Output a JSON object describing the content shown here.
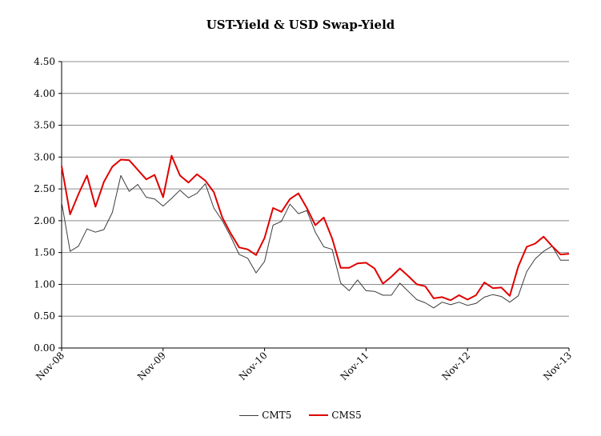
{
  "chart_data": {
    "type": "line",
    "title": "UST-Yield & USD Swap-Yield",
    "xlabel": "",
    "ylabel": "",
    "ylim": [
      0,
      4.5
    ],
    "y_ticks": [
      "0.00",
      "0.50",
      "1.00",
      "1.50",
      "2.00",
      "2.50",
      "3.00",
      "3.50",
      "4.00",
      "4.50"
    ],
    "x_ticks": [
      "Nov-08",
      "Nov-09",
      "Nov-10",
      "Nov-11",
      "Nov-12",
      "Nov-13"
    ],
    "grid": true,
    "legend": "bottom",
    "months_axis": {
      "start": "Nov-08",
      "end": "Nov-13"
    },
    "series": [
      {
        "name": "CMT5",
        "color": "#3c3c3c",
        "values": [
          2.29,
          1.52,
          1.6,
          1.87,
          1.82,
          1.86,
          2.13,
          2.71,
          2.46,
          2.57,
          2.37,
          2.34,
          2.23,
          2.35,
          2.48,
          2.36,
          2.43,
          2.58,
          2.2,
          2.0,
          1.75,
          1.47,
          1.41,
          1.18,
          1.36,
          1.93,
          1.99,
          2.26,
          2.11,
          2.16,
          1.82,
          1.59,
          1.55,
          1.02,
          0.9,
          1.07,
          0.9,
          0.89,
          0.83,
          0.83,
          1.02,
          0.89,
          0.76,
          0.71,
          0.63,
          0.72,
          0.68,
          0.72,
          0.67,
          0.7,
          0.8,
          0.84,
          0.81,
          0.72,
          0.82,
          1.2,
          1.4,
          1.52,
          1.6,
          1.38,
          1.38
        ]
      },
      {
        "name": "CMS5",
        "color": "#e00000",
        "values": [
          2.86,
          2.1,
          2.42,
          2.71,
          2.22,
          2.61,
          2.85,
          2.96,
          2.95,
          2.8,
          2.65,
          2.72,
          2.37,
          3.02,
          2.71,
          2.6,
          2.73,
          2.63,
          2.45,
          2.05,
          1.8,
          1.58,
          1.55,
          1.46,
          1.73,
          2.2,
          2.14,
          2.34,
          2.43,
          2.2,
          1.93,
          2.05,
          1.72,
          1.26,
          1.26,
          1.33,
          1.34,
          1.25,
          1.01,
          1.12,
          1.25,
          1.13,
          1.0,
          0.97,
          0.78,
          0.8,
          0.75,
          0.83,
          0.76,
          0.83,
          1.03,
          0.94,
          0.95,
          0.82,
          1.28,
          1.59,
          1.64,
          1.75,
          1.6,
          1.47,
          1.48
        ]
      }
    ]
  }
}
